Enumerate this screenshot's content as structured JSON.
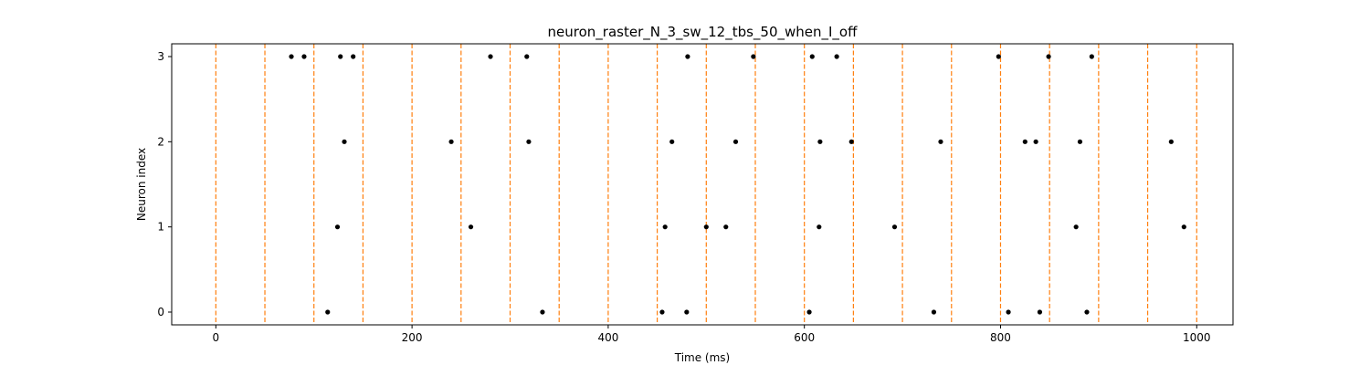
{
  "chart_data": {
    "type": "scatter",
    "title": "neuron_raster_N_3_sw_12_tbs_50_when_I_off",
    "xlabel": "Time (ms)",
    "ylabel": "Neuron index",
    "xlim": [
      -45,
      1037
    ],
    "ylim": [
      -0.15,
      3.15
    ],
    "xticks": [
      0,
      200,
      400,
      600,
      800,
      1000
    ],
    "yticks": [
      0,
      1,
      2,
      3
    ],
    "grid": false,
    "colors": {
      "spike": "#000000",
      "boundary": "#ff7f0e"
    },
    "boundaries": [
      0,
      50,
      100,
      150,
      200,
      250,
      300,
      350,
      400,
      450,
      500,
      550,
      600,
      650,
      700,
      750,
      800,
      850,
      900,
      950,
      1000
    ],
    "series": [
      {
        "neuron": 3,
        "x": [
          77,
          90,
          127,
          140,
          280,
          317,
          481,
          548,
          608,
          633,
          798,
          849,
          893
        ]
      },
      {
        "neuron": 2,
        "x": [
          131,
          240,
          319,
          465,
          530,
          616,
          648,
          739,
          825,
          836,
          881,
          974
        ]
      },
      {
        "neuron": 1,
        "x": [
          124,
          260,
          458,
          500,
          520,
          615,
          692,
          877,
          987
        ]
      },
      {
        "neuron": 0,
        "x": [
          114,
          333,
          455,
          480,
          605,
          732,
          808,
          840,
          888
        ]
      }
    ]
  }
}
